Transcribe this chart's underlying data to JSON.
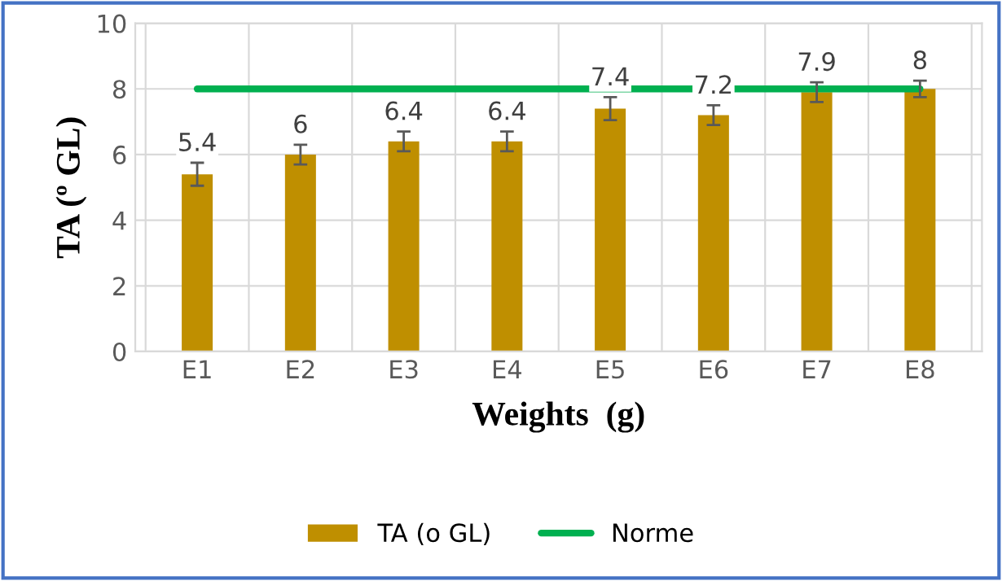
{
  "chart_data": {
    "type": "bar",
    "xlabel": "Weights  (g)",
    "ylabel": "TA (º GL)",
    "categories": [
      "E1",
      "E2",
      "E3",
      "E4",
      "E5",
      "E6",
      "E7",
      "E8"
    ],
    "series": [
      {
        "name": "TA (o GL)",
        "color": "#bf8f00",
        "values": [
          5.4,
          6,
          6.4,
          6.4,
          7.4,
          7.2,
          7.9,
          8
        ],
        "errors": [
          0.35,
          0.3,
          0.3,
          0.3,
          0.35,
          0.3,
          0.3,
          0.25
        ],
        "value_labels": [
          "5.4",
          "6",
          "6.4",
          "6.4",
          "7.4",
          "7.2",
          "7.9",
          "8"
        ]
      },
      {
        "name": "Norme",
        "type": "line",
        "color": "#00b050",
        "values": [
          8,
          8,
          8,
          8,
          8,
          8,
          8,
          8
        ]
      }
    ],
    "ylim": [
      0,
      10
    ],
    "yticks": [
      0,
      2,
      4,
      6,
      8,
      10
    ],
    "grid": true,
    "legend": "bottom"
  }
}
